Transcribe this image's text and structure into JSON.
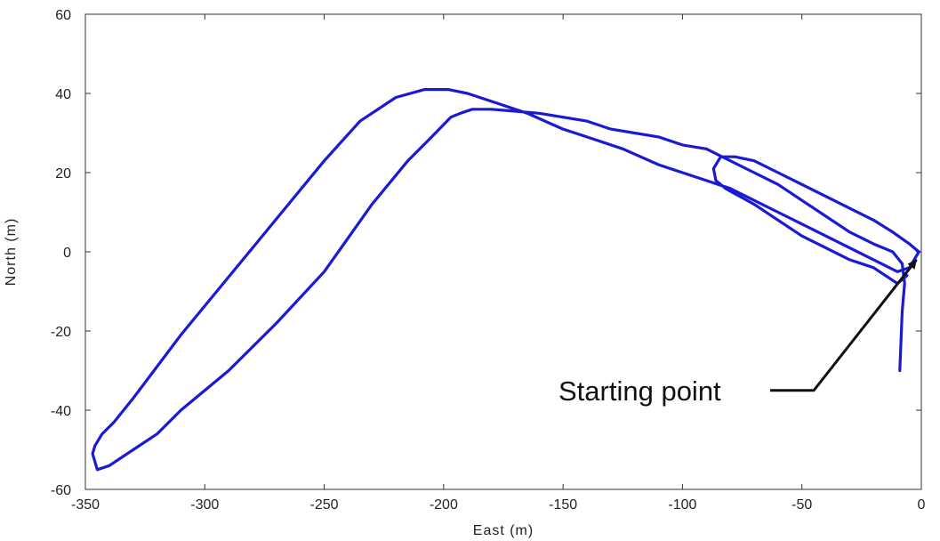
{
  "chart_data": {
    "type": "line",
    "title": "",
    "xlabel": "East (m)",
    "ylabel": "North (m)",
    "xlim": [
      -350,
      0
    ],
    "ylim": [
      -60,
      60
    ],
    "xticks": [
      -350,
      -300,
      -250,
      -200,
      -150,
      -100,
      -50,
      0
    ],
    "yticks": [
      -60,
      -40,
      -20,
      0,
      20,
      40,
      60
    ],
    "xtick_labels": [
      "-350",
      "-300",
      "-250",
      "-200",
      "-150",
      "-100",
      "-50",
      "0"
    ],
    "ytick_labels": [
      "-60",
      "-40",
      "-20",
      "0",
      "20",
      "40",
      "60"
    ],
    "grid": false,
    "series": [
      {
        "color": "#1a1ad6",
        "x": [
          -9,
          -8,
          -7,
          -8,
          -12,
          -20,
          -30,
          -40,
          -50,
          -60,
          -70,
          -80,
          -90,
          -100,
          -110,
          -120,
          -130,
          -140,
          -150,
          -160,
          -170,
          -180,
          -188,
          -193,
          -197,
          -205,
          -215,
          -230,
          -250,
          -270,
          -290,
          -310,
          -320,
          -330,
          -340,
          -345,
          -347,
          -346,
          -343,
          -338,
          -330,
          -320,
          -310,
          -295,
          -280,
          -265,
          -250,
          -235,
          -220,
          -208,
          -198,
          -190,
          -180,
          -165,
          -150,
          -140,
          -125,
          -110,
          -100,
          -90,
          -80,
          -70,
          -60,
          -50,
          -40,
          -30,
          -20,
          -10,
          -5,
          -1
        ],
        "y": [
          -30,
          -15,
          -8,
          -3,
          0,
          2,
          5,
          9,
          13,
          17,
          20,
          23,
          26,
          27,
          29,
          30,
          31,
          33,
          34,
          35,
          35.5,
          36,
          36,
          35,
          34,
          29,
          23,
          12,
          -5,
          -18,
          -30,
          -40,
          -46,
          -50,
          -54,
          -55,
          -51,
          -49,
          -46,
          -43,
          -37,
          -29,
          -21,
          -10,
          1,
          12,
          23,
          33,
          39,
          41,
          41,
          40,
          38,
          35,
          31,
          29,
          26,
          22,
          20,
          18,
          16,
          13,
          10,
          7,
          4,
          1,
          -2,
          -5,
          -4,
          0
        ]
      },
      {
        "color": "#1a1ad6",
        "x": [
          -1,
          -5,
          -12,
          -20,
          -30,
          -40,
          -50,
          -60,
          -70,
          -78,
          -84,
          -87,
          -86,
          -82,
          -79,
          -76,
          -70,
          -60,
          -50,
          -40,
          -30,
          -20,
          -15,
          -10,
          -6
        ],
        "y": [
          0,
          2,
          5,
          8,
          11,
          14,
          17,
          20,
          23,
          24,
          24,
          21,
          18,
          16,
          15,
          14,
          12,
          8,
          4,
          1,
          -2,
          -4,
          -6,
          -8,
          -6
        ]
      }
    ],
    "annotations": [
      {
        "text": "Starting point",
        "x": -45,
        "y": -35,
        "arrow_to_x": -2,
        "arrow_to_y": -2
      }
    ]
  }
}
